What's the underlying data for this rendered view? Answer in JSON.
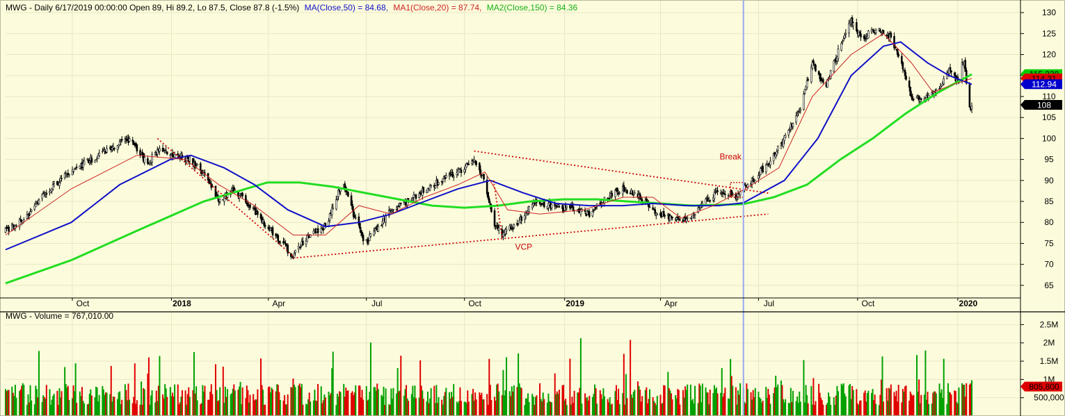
{
  "chart_data": [
    {
      "type": "candlestick",
      "title": {
        "prefix": "MWG - Daily 6/17/2019 00:00:00 Open 89, Hi 89.2, Lo 87.5, Close 87.8 (-1.5%)",
        "ma50": "MA(Close,50) = 84.68,",
        "ma20": "MA1(Close,20) = 87.74,",
        "ma150": "MA2(Close,150) = 84.36"
      },
      "y_ticks": [
        65,
        70,
        75,
        80,
        85,
        90,
        95,
        100,
        105,
        110,
        115,
        120,
        125,
        130
      ],
      "ylim": [
        62,
        133
      ],
      "x_ticks": [
        {
          "label": "Oct",
          "date": "2017-10-02",
          "bold": false
        },
        {
          "label": "2018",
          "date": "2018-01-02",
          "bold": true
        },
        {
          "label": "Apr",
          "date": "2018-04-02",
          "bold": false
        },
        {
          "label": "Jul",
          "date": "2018-07-02",
          "bold": false
        },
        {
          "label": "Oct",
          "date": "2018-10-01",
          "bold": false
        },
        {
          "label": "2019",
          "date": "2019-01-02",
          "bold": true
        },
        {
          "label": "Apr",
          "date": "2019-04-01",
          "bold": false
        },
        {
          "label": "Jul",
          "date": "2019-07-01",
          "bold": false
        },
        {
          "label": "Oct",
          "date": "2019-10-01",
          "bold": false
        },
        {
          "label": "2020",
          "date": "2020-01-02",
          "bold": true
        }
      ],
      "xlim": [
        "2017-08-01",
        "2020-01-15"
      ],
      "price_path": [
        [
          "2017-08-01",
          78
        ],
        [
          "2017-08-20",
          81
        ],
        [
          "2017-09-10",
          88
        ],
        [
          "2017-10-01",
          92
        ],
        [
          "2017-10-20",
          95
        ],
        [
          "2017-11-10",
          98
        ],
        [
          "2017-11-25",
          100
        ],
        [
          "2017-12-10",
          94
        ],
        [
          "2017-12-20",
          97
        ],
        [
          "2018-01-05",
          96
        ],
        [
          "2018-01-20",
          95
        ],
        [
          "2018-02-05",
          90
        ],
        [
          "2018-02-15",
          85
        ],
        [
          "2018-03-01",
          88
        ],
        [
          "2018-03-15",
          84
        ],
        [
          "2018-04-01",
          79
        ],
        [
          "2018-04-15",
          75
        ],
        [
          "2018-04-25",
          72
        ],
        [
          "2018-05-10",
          77
        ],
        [
          "2018-05-25",
          79
        ],
        [
          "2018-06-10",
          90
        ],
        [
          "2018-06-20",
          82
        ],
        [
          "2018-07-01",
          75
        ],
        [
          "2018-07-10",
          78
        ],
        [
          "2018-07-25",
          83
        ],
        [
          "2018-08-10",
          85
        ],
        [
          "2018-08-25",
          88
        ],
        [
          "2018-09-10",
          90
        ],
        [
          "2018-09-25",
          92
        ],
        [
          "2018-10-10",
          95
        ],
        [
          "2018-10-20",
          90
        ],
        [
          "2018-10-28",
          80
        ],
        [
          "2018-11-05",
          77
        ],
        [
          "2018-11-20",
          80
        ],
        [
          "2018-12-05",
          85
        ],
        [
          "2018-12-20",
          84
        ],
        [
          "2019-01-10",
          83
        ],
        [
          "2019-01-25",
          82
        ],
        [
          "2019-02-10",
          86
        ],
        [
          "2019-02-25",
          88
        ],
        [
          "2019-03-10",
          87
        ],
        [
          "2019-03-25",
          83
        ],
        [
          "2019-04-10",
          81
        ],
        [
          "2019-04-25",
          81
        ],
        [
          "2019-05-10",
          84
        ],
        [
          "2019-05-25",
          88
        ],
        [
          "2019-06-10",
          86
        ],
        [
          "2019-06-17",
          87.8
        ],
        [
          "2019-06-25",
          90
        ],
        [
          "2019-07-10",
          94
        ],
        [
          "2019-07-25",
          100
        ],
        [
          "2019-08-10",
          108
        ],
        [
          "2019-08-20",
          118
        ],
        [
          "2019-09-01",
          112
        ],
        [
          "2019-09-15",
          122
        ],
        [
          "2019-09-25",
          128
        ],
        [
          "2019-10-05",
          124
        ],
        [
          "2019-10-20",
          126
        ],
        [
          "2019-11-01",
          124
        ],
        [
          "2019-11-10",
          118
        ],
        [
          "2019-11-20",
          110
        ],
        [
          "2019-12-01",
          109
        ],
        [
          "2019-12-15",
          112
        ],
        [
          "2019-12-25",
          116
        ],
        [
          "2020-01-02",
          114
        ],
        [
          "2020-01-08",
          119
        ],
        [
          "2020-01-12",
          107
        ],
        [
          "2020-01-15",
          108
        ]
      ],
      "ma20_path": [
        [
          "2017-08-01",
          77
        ],
        [
          "2017-10-01",
          88
        ],
        [
          "2017-12-01",
          96
        ],
        [
          "2018-01-15",
          95
        ],
        [
          "2018-02-15",
          89
        ],
        [
          "2018-03-20",
          84
        ],
        [
          "2018-04-25",
          77
        ],
        [
          "2018-05-25",
          77
        ],
        [
          "2018-06-25",
          84
        ],
        [
          "2018-07-25",
          82
        ],
        [
          "2018-08-25",
          86
        ],
        [
          "2018-09-25",
          89
        ],
        [
          "2018-10-20",
          92
        ],
        [
          "2018-11-10",
          83
        ],
        [
          "2018-12-10",
          82
        ],
        [
          "2019-01-20",
          83
        ],
        [
          "2019-02-25",
          86
        ],
        [
          "2019-03-25",
          86
        ],
        [
          "2019-04-20",
          81
        ],
        [
          "2019-05-20",
          84
        ],
        [
          "2019-06-17",
          87.74
        ],
        [
          "2019-07-20",
          93
        ],
        [
          "2019-08-20",
          110
        ],
        [
          "2019-09-25",
          120
        ],
        [
          "2019-10-25",
          125
        ],
        [
          "2019-11-20",
          118
        ],
        [
          "2019-12-10",
          111
        ],
        [
          "2019-12-30",
          113
        ],
        [
          "2020-01-15",
          114.3
        ]
      ],
      "ma50_path": [
        [
          "2017-08-01",
          73.5
        ],
        [
          "2017-10-01",
          80
        ],
        [
          "2017-11-15",
          89
        ],
        [
          "2018-01-01",
          95
        ],
        [
          "2018-01-20",
          96
        ],
        [
          "2018-02-20",
          93
        ],
        [
          "2018-03-20",
          89
        ],
        [
          "2018-04-20",
          83
        ],
        [
          "2018-05-25",
          79
        ],
        [
          "2018-06-25",
          80
        ],
        [
          "2018-07-25",
          82
        ],
        [
          "2018-08-25",
          85
        ],
        [
          "2018-09-25",
          88
        ],
        [
          "2018-10-25",
          90
        ],
        [
          "2018-11-25",
          87
        ],
        [
          "2018-12-25",
          84.5
        ],
        [
          "2019-01-25",
          84
        ],
        [
          "2019-02-25",
          84
        ],
        [
          "2019-03-25",
          84.5
        ],
        [
          "2019-04-25",
          84
        ],
        [
          "2019-05-25",
          84
        ],
        [
          "2019-06-17",
          84.68
        ],
        [
          "2019-07-25",
          90
        ],
        [
          "2019-08-25",
          100
        ],
        [
          "2019-09-25",
          115
        ],
        [
          "2019-10-25",
          122
        ],
        [
          "2019-11-10",
          123
        ],
        [
          "2019-12-05",
          118
        ],
        [
          "2019-12-25",
          115
        ],
        [
          "2020-01-15",
          112.9
        ]
      ],
      "ma150_path": [
        [
          "2017-08-01",
          65.5
        ],
        [
          "2017-10-01",
          71
        ],
        [
          "2017-12-01",
          78
        ],
        [
          "2018-02-01",
          85
        ],
        [
          "2018-04-01",
          89.5
        ],
        [
          "2018-05-01",
          89.5
        ],
        [
          "2018-06-01",
          88.5
        ],
        [
          "2018-07-01",
          87
        ],
        [
          "2018-08-01",
          85.5
        ],
        [
          "2018-09-01",
          84
        ],
        [
          "2018-10-01",
          83.5
        ],
        [
          "2018-11-01",
          84
        ],
        [
          "2018-12-01",
          85
        ],
        [
          "2019-01-01",
          85.5
        ],
        [
          "2019-02-01",
          85.5
        ],
        [
          "2019-03-01",
          85
        ],
        [
          "2019-04-01",
          84.5
        ],
        [
          "2019-05-01",
          84
        ],
        [
          "2019-06-17",
          84.36
        ],
        [
          "2019-07-15",
          86
        ],
        [
          "2019-08-15",
          89
        ],
        [
          "2019-09-15",
          95
        ],
        [
          "2019-10-15",
          100
        ],
        [
          "2019-11-15",
          106
        ],
        [
          "2019-12-15",
          111
        ],
        [
          "2020-01-15",
          115.3
        ]
      ],
      "trendlines": [
        {
          "from": [
            "2017-12-20",
            100
          ],
          "to": [
            "2018-04-25",
            72
          ],
          "color": "#cc0000"
        },
        {
          "from": [
            "2018-04-25",
            71.5
          ],
          "to": [
            "2019-07-10",
            82
          ],
          "color": "#cc0000"
        },
        {
          "from": [
            "2018-10-10",
            97
          ],
          "to": [
            "2019-07-10",
            87
          ],
          "color": "#cc0000"
        },
        {
          "from": [
            "2018-10-28",
            90
          ],
          "to": [
            "2018-11-05",
            76.5
          ],
          "color": "#cc0000"
        }
      ],
      "annotations": [
        {
          "text": "VCP",
          "at": [
            "2018-11-25",
            73.5
          ],
          "color": "#cc0000"
        },
        {
          "text": "Break",
          "at": [
            "2019-06-05",
            95
          ],
          "color": "#cc0000"
        }
      ],
      "break_marker": {
        "from": [
          "2019-06-05",
          86
        ],
        "to": [
          "2019-06-17",
          89.5
        ],
        "color": "#cc0000"
      },
      "cursor_date": "2019-06-17",
      "price_labels": [
        {
          "text": "115.338",
          "value": 115.338,
          "bg": "#00cc00",
          "fg": "#000000"
        },
        {
          "text": "114.31",
          "value": 114.31,
          "bg": "#dd0000",
          "fg": "#000000"
        },
        {
          "text": "112.94",
          "value": 112.94,
          "bg": "#0000cc",
          "fg": "#ffffff"
        },
        {
          "text": "108",
          "value": 108,
          "bg": "#000000",
          "fg": "#ffffff"
        }
      ],
      "colors": {
        "background": "#fcfcdc",
        "ma20": "#cc2222",
        "ma50": "#1010c8",
        "ma150": "#22dd22",
        "candle": "#000000",
        "cursor": "#9aa6f0"
      }
    },
    {
      "type": "bar",
      "title": {
        "prefix": "MWG - Volume = 767,010.00"
      },
      "y_ticks": [
        {
          "label": "500,000",
          "value": 500000
        },
        {
          "label": "1M",
          "value": 1000000
        },
        {
          "label": "1.5M",
          "value": 1500000
        },
        {
          "label": "2M",
          "value": 2000000
        },
        {
          "label": "2.5M",
          "value": 2500000
        }
      ],
      "ylim": [
        0,
        2850000
      ],
      "value_label": {
        "text": "805,800",
        "value": 805800,
        "bg": "#dd0000",
        "fg": "#000000"
      },
      "colors": {
        "up": "#00a000",
        "down": "#e00000"
      }
    }
  ]
}
